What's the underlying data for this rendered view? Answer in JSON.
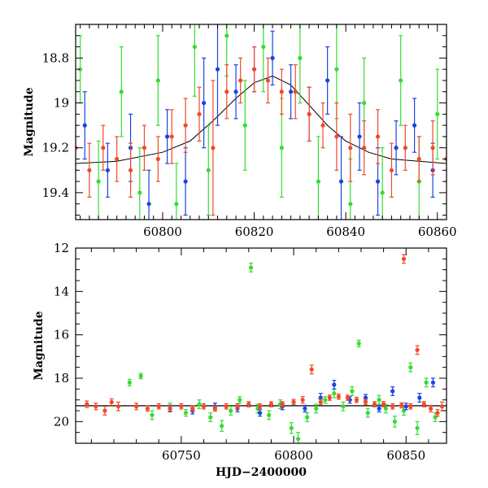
{
  "chart_data": [
    {
      "type": "scatter",
      "title": "",
      "xlabel": "",
      "ylabel": "Magnitude",
      "xlim": [
        60781,
        60862
      ],
      "ylim": [
        19.52,
        18.65
      ],
      "y_inverted": true,
      "grid": false,
      "xticks": [
        60800,
        60820,
        60840,
        60860
      ],
      "yticks": [
        18.8,
        19,
        19.2,
        19.4
      ],
      "ytick_labels": [
        "18.8",
        "19",
        "19.2",
        "19.4"
      ],
      "trend_curve": {
        "x": [
          60781,
          60790,
          60800,
          60806,
          60811,
          60816,
          60820,
          60824,
          60828,
          60832,
          60836,
          60840,
          60845,
          60850,
          60856,
          60862
        ],
        "y": [
          19.27,
          19.26,
          19.22,
          19.17,
          19.08,
          18.98,
          18.91,
          18.88,
          18.92,
          19.01,
          19.1,
          19.17,
          19.22,
          19.25,
          19.26,
          19.27
        ]
      },
      "series": [
        {
          "color": "#33dd33",
          "points": [
            [
              60782,
              18.85,
              0.15
            ],
            [
              60786,
              19.35,
              0.18
            ],
            [
              60791,
              18.95,
              0.2
            ],
            [
              60795,
              19.4,
              0.2
            ],
            [
              60799,
              18.9,
              0.2
            ],
            [
              60803,
              19.45,
              0.18
            ],
            [
              60807,
              18.75,
              0.22
            ],
            [
              60810,
              19.3,
              0.2
            ],
            [
              60814,
              18.7,
              0.18
            ],
            [
              60818,
              19.1,
              0.2
            ],
            [
              60822,
              18.75,
              0.2
            ],
            [
              60826,
              19.2,
              0.22
            ],
            [
              60830,
              18.8,
              0.2
            ],
            [
              60834,
              19.35,
              0.2
            ],
            [
              60838,
              18.85,
              0.22
            ],
            [
              60841,
              19.45,
              0.2
            ],
            [
              60844,
              19.0,
              0.2
            ],
            [
              60848,
              19.4,
              0.2
            ],
            [
              60852,
              18.9,
              0.2
            ],
            [
              60856,
              19.35,
              0.2
            ],
            [
              60860,
              19.05,
              0.2
            ]
          ]
        },
        {
          "color": "#1a44e0",
          "points": [
            [
              60783,
              19.1,
              0.15
            ],
            [
              60788,
              19.3,
              0.12
            ],
            [
              60793,
              19.2,
              0.15
            ],
            [
              60797,
              19.45,
              0.15
            ],
            [
              60801,
              19.15,
              0.12
            ],
            [
              60805,
              19.35,
              0.15
            ],
            [
              60809,
              19.0,
              0.2
            ],
            [
              60812,
              18.85,
              0.25
            ],
            [
              60816,
              18.95,
              0.12
            ],
            [
              60820,
              18.85,
              0.1
            ],
            [
              60824,
              18.8,
              0.12
            ],
            [
              60828,
              18.95,
              0.12
            ],
            [
              60832,
              19.05,
              0.12
            ],
            [
              60836,
              18.9,
              0.15
            ],
            [
              60839,
              19.35,
              0.2
            ],
            [
              60843,
              19.15,
              0.15
            ],
            [
              60847,
              19.35,
              0.15
            ],
            [
              60851,
              19.2,
              0.12
            ],
            [
              60855,
              19.1,
              0.12
            ],
            [
              60859,
              19.3,
              0.12
            ]
          ]
        },
        {
          "color": "#f04a2a",
          "points": [
            [
              60781,
              19.2,
              0.1
            ],
            [
              60784,
              19.3,
              0.12
            ],
            [
              60787,
              19.2,
              0.1
            ],
            [
              60790,
              19.25,
              0.1
            ],
            [
              60793,
              19.3,
              0.12
            ],
            [
              60796,
              19.2,
              0.1
            ],
            [
              60799,
              19.25,
              0.1
            ],
            [
              60802,
              19.15,
              0.12
            ],
            [
              60805,
              19.1,
              0.12
            ],
            [
              60808,
              19.05,
              0.12
            ],
            [
              60811,
              19.2,
              0.3
            ],
            [
              60814,
              18.95,
              0.12
            ],
            [
              60817,
              18.9,
              0.1
            ],
            [
              60820,
              18.85,
              0.1
            ],
            [
              60823,
              18.9,
              0.1
            ],
            [
              60826,
              18.95,
              0.1
            ],
            [
              60829,
              18.95,
              0.12
            ],
            [
              60832,
              19.05,
              0.12
            ],
            [
              60835,
              19.1,
              0.1
            ],
            [
              60838,
              19.15,
              0.15
            ],
            [
              60841,
              19.2,
              0.15
            ],
            [
              60844,
              19.2,
              0.12
            ],
            [
              60847,
              19.15,
              0.12
            ],
            [
              60850,
              19.3,
              0.12
            ],
            [
              60853,
              19.2,
              0.1
            ],
            [
              60856,
              19.25,
              0.1
            ],
            [
              60859,
              19.2,
              0.12
            ],
            [
              60862,
              19.25,
              0.1
            ]
          ]
        }
      ]
    },
    {
      "type": "scatter",
      "title": "",
      "xlabel": "HJD−2400000",
      "ylabel": "Magnitude",
      "xlim": [
        60703,
        60868
      ],
      "ylim": [
        21.0,
        12.0
      ],
      "y_inverted": true,
      "grid": false,
      "xticks": [
        60750,
        60800,
        60850
      ],
      "yticks": [
        12,
        14,
        16,
        18,
        20
      ],
      "ytick_labels": [
        "12",
        "14",
        "16",
        "18",
        "20"
      ],
      "reference_line": {
        "y": 19.27,
        "x_from": 60703,
        "x_to": 60868
      },
      "series": [
        {
          "color": "#33dd33",
          "points": [
            [
              60727,
              18.2,
              0.15
            ],
            [
              60732,
              17.9,
              0.12
            ],
            [
              60737,
              19.7,
              0.2
            ],
            [
              60745,
              19.3,
              0.15
            ],
            [
              60752,
              19.6,
              0.15
            ],
            [
              60758,
              19.2,
              0.2
            ],
            [
              60763,
              19.8,
              0.2
            ],
            [
              60768,
              20.2,
              0.25
            ],
            [
              60772,
              19.5,
              0.2
            ],
            [
              60776,
              19.0,
              0.15
            ],
            [
              60781,
              12.9,
              0.2
            ],
            [
              60784,
              19.4,
              0.2
            ],
            [
              60789,
              19.7,
              0.2
            ],
            [
              60794,
              19.2,
              0.2
            ],
            [
              60799,
              20.3,
              0.25
            ],
            [
              60802,
              20.8,
              0.3
            ],
            [
              60806,
              19.8,
              0.2
            ],
            [
              60810,
              19.4,
              0.2
            ],
            [
              60814,
              19.0,
              0.15
            ],
            [
              60818,
              18.7,
              0.2
            ],
            [
              60822,
              19.3,
              0.2
            ],
            [
              60826,
              18.6,
              0.2
            ],
            [
              60829,
              16.4,
              0.15
            ],
            [
              60833,
              19.6,
              0.2
            ],
            [
              60838,
              19.0,
              0.2
            ],
            [
              60841,
              19.4,
              0.2
            ],
            [
              60845,
              20.0,
              0.25
            ],
            [
              60849,
              19.5,
              0.2
            ],
            [
              60852,
              17.5,
              0.2
            ],
            [
              60855,
              20.3,
              0.3
            ],
            [
              60859,
              18.2,
              0.2
            ],
            [
              60863,
              19.8,
              0.2
            ]
          ]
        },
        {
          "color": "#1a44e0",
          "points": [
            [
              60745,
              19.4,
              0.15
            ],
            [
              60755,
              19.5,
              0.15
            ],
            [
              60765,
              19.3,
              0.15
            ],
            [
              60775,
              19.4,
              0.15
            ],
            [
              60785,
              19.6,
              0.15
            ],
            [
              60795,
              19.3,
              0.15
            ],
            [
              60805,
              19.4,
              0.15
            ],
            [
              60812,
              18.9,
              0.2
            ],
            [
              60818,
              18.3,
              0.2
            ],
            [
              60825,
              19.0,
              0.15
            ],
            [
              60832,
              18.9,
              0.15
            ],
            [
              60838,
              19.4,
              0.15
            ],
            [
              60844,
              18.6,
              0.2
            ],
            [
              60850,
              19.3,
              0.15
            ],
            [
              60856,
              18.9,
              0.2
            ],
            [
              60862,
              18.2,
              0.2
            ]
          ]
        },
        {
          "color": "#f04a2a",
          "points": [
            [
              60708,
              19.2,
              0.15
            ],
            [
              60712,
              19.3,
              0.15
            ],
            [
              60716,
              19.5,
              0.2
            ],
            [
              60719,
              19.1,
              0.15
            ],
            [
              60722,
              19.3,
              0.2
            ],
            [
              60730,
              19.3,
              0.15
            ],
            [
              60735,
              19.4,
              0.12
            ],
            [
              60740,
              19.3,
              0.12
            ],
            [
              60745,
              19.4,
              0.12
            ],
            [
              60750,
              19.3,
              0.12
            ],
            [
              60755,
              19.4,
              0.12
            ],
            [
              60760,
              19.3,
              0.12
            ],
            [
              60765,
              19.4,
              0.12
            ],
            [
              60770,
              19.3,
              0.12
            ],
            [
              60775,
              19.3,
              0.12
            ],
            [
              60780,
              19.2,
              0.12
            ],
            [
              60785,
              19.3,
              0.12
            ],
            [
              60790,
              19.2,
              0.12
            ],
            [
              60795,
              19.2,
              0.12
            ],
            [
              60800,
              19.1,
              0.12
            ],
            [
              60804,
              19.0,
              0.15
            ],
            [
              60808,
              17.6,
              0.2
            ],
            [
              60812,
              19.1,
              0.12
            ],
            [
              60816,
              18.9,
              0.12
            ],
            [
              60820,
              18.85,
              0.12
            ],
            [
              60824,
              18.9,
              0.12
            ],
            [
              60828,
              19.0,
              0.12
            ],
            [
              60832,
              19.1,
              0.12
            ],
            [
              60836,
              19.2,
              0.12
            ],
            [
              60840,
              19.2,
              0.12
            ],
            [
              60844,
              19.3,
              0.12
            ],
            [
              60848,
              19.25,
              0.12
            ],
            [
              60849,
              12.5,
              0.2
            ],
            [
              60852,
              19.3,
              0.12
            ],
            [
              60855,
              16.7,
              0.2
            ],
            [
              60858,
              19.2,
              0.12
            ],
            [
              60861,
              19.4,
              0.15
            ],
            [
              60864,
              19.6,
              0.15
            ],
            [
              60866,
              19.3,
              0.2
            ]
          ]
        }
      ]
    }
  ]
}
